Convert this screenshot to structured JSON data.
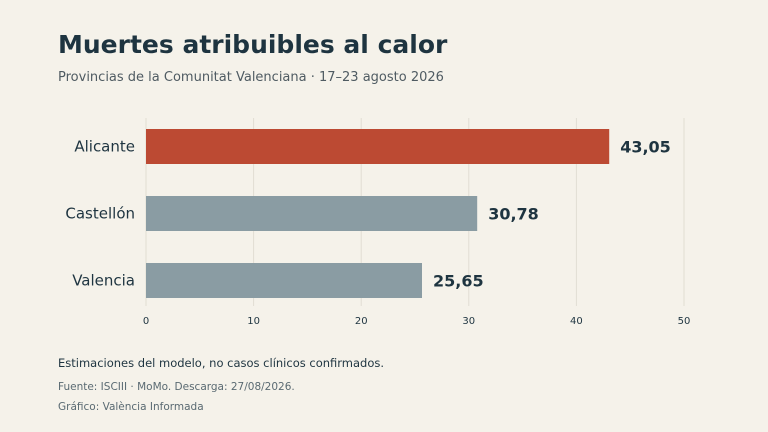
{
  "title": "Muertes atribuibles al calor",
  "subtitle": "Provincias de la Comunitat Valenciana · 17–23 agosto 2026",
  "note": "Estimaciones del modelo, no casos clínicos confirmados.",
  "source": "Fuente: ISCIII · MoMo. Descarga: 27/08/2026.",
  "credit": "Gráfico: València Informada",
  "colors": {
    "highlight": "#bc4a33",
    "default": "#8a9ca3",
    "grid": "#e1ddd3",
    "label": "#1e3440"
  },
  "chart_data": {
    "type": "bar",
    "orientation": "horizontal",
    "categories": [
      "Alicante",
      "Castellón",
      "Valencia"
    ],
    "values": [
      43.05,
      30.78,
      25.65
    ],
    "value_labels": [
      "43,05",
      "30,78",
      "25,65"
    ],
    "highlight_index": 0,
    "xlim": [
      0,
      50
    ],
    "xticks": [
      0,
      10,
      20,
      30,
      40,
      50
    ],
    "grid": true
  }
}
